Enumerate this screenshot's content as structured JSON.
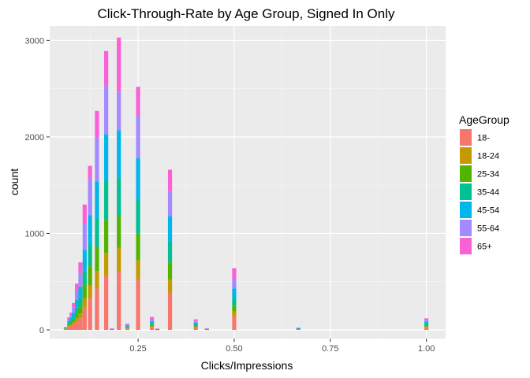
{
  "chart_data": {
    "type": "bar",
    "stacked": true,
    "title": "Click-Through-Rate by Age Group, Signed In Only",
    "xlabel": "Clicks/Impressions",
    "ylabel": "count",
    "xlim": [
      0.02,
      1.05
    ],
    "ylim": [
      -90,
      3150
    ],
    "x_ticks": [
      {
        "value": 0.25,
        "label": "0.25"
      },
      {
        "value": 0.5,
        "label": "0.50"
      },
      {
        "value": 0.75,
        "label": "0.75"
      },
      {
        "value": 1.0,
        "label": "1.00"
      }
    ],
    "y_ticks": [
      {
        "value": 0,
        "label": "0"
      },
      {
        "value": 1000,
        "label": "1000"
      },
      {
        "value": 2000,
        "label": "2000"
      },
      {
        "value": 3000,
        "label": "3000"
      }
    ],
    "grid": true,
    "legend": {
      "title": "AgeGroup",
      "position": "right"
    },
    "series": [
      {
        "name": "18-",
        "color": "#F8766D"
      },
      {
        "name": "18-24",
        "color": "#C49A00"
      },
      {
        "name": "25-34",
        "color": "#53B400"
      },
      {
        "name": "35-44",
        "color": "#00C094"
      },
      {
        "name": "45-54",
        "color": "#00B6EB"
      },
      {
        "name": "55-64",
        "color": "#A58AFF"
      },
      {
        "name": "65+",
        "color": "#FB61D7"
      }
    ],
    "bars": [
      {
        "x": 0.062,
        "values": [
          10,
          4,
          4,
          4,
          3,
          2,
          3
        ]
      },
      {
        "x": 0.071,
        "values": [
          30,
          10,
          15,
          15,
          20,
          20,
          20
        ]
      },
      {
        "x": 0.077,
        "values": [
          40,
          15,
          20,
          20,
          30,
          30,
          25
        ]
      },
      {
        "x": 0.083,
        "values": [
          60,
          20,
          30,
          30,
          40,
          50,
          50
        ]
      },
      {
        "x": 0.091,
        "values": [
          90,
          30,
          50,
          60,
          80,
          90,
          80
        ]
      },
      {
        "x": 0.1,
        "values": [
          120,
          50,
          80,
          90,
          110,
          140,
          110
        ]
      },
      {
        "x": 0.111,
        "values": [
          230,
          100,
          140,
          140,
          220,
          270,
          200
        ]
      },
      {
        "x": 0.125,
        "values": [
          330,
          130,
          200,
          230,
          300,
          380,
          130
        ]
      },
      {
        "x": 0.143,
        "values": [
          430,
          180,
          250,
          300,
          380,
          450,
          280
        ]
      },
      {
        "x": 0.167,
        "values": [
          560,
          240,
          340,
          410,
          480,
          500,
          360
        ]
      },
      {
        "x": 0.2,
        "values": [
          600,
          250,
          330,
          400,
          490,
          400,
          560
        ]
      },
      {
        "x": 0.25,
        "values": [
          520,
          200,
          280,
          350,
          430,
          440,
          300
        ]
      },
      {
        "x": 0.333,
        "values": [
          380,
          140,
          180,
          220,
          260,
          250,
          230
        ]
      },
      {
        "x": 0.5,
        "values": [
          140,
          50,
          60,
          80,
          100,
          100,
          110
        ]
      },
      {
        "x": 1.0,
        "values": [
          25,
          10,
          15,
          15,
          20,
          20,
          15
        ]
      },
      {
        "x": 0.182,
        "values": [
          4,
          2,
          2,
          2,
          2,
          2,
          2
        ]
      },
      {
        "x": 0.222,
        "values": [
          15,
          6,
          8,
          8,
          10,
          10,
          8
        ]
      },
      {
        "x": 0.286,
        "values": [
          30,
          10,
          15,
          15,
          20,
          20,
          25
        ]
      },
      {
        "x": 0.3,
        "values": [
          3,
          1,
          2,
          2,
          2,
          2,
          2
        ]
      },
      {
        "x": 0.4,
        "values": [
          25,
          8,
          12,
          12,
          18,
          20,
          15
        ]
      },
      {
        "x": 0.429,
        "values": [
          4,
          2,
          2,
          2,
          2,
          2,
          2
        ]
      },
      {
        "x": 0.667,
        "values": [
          5,
          2,
          3,
          3,
          4,
          4,
          3
        ]
      }
    ]
  }
}
